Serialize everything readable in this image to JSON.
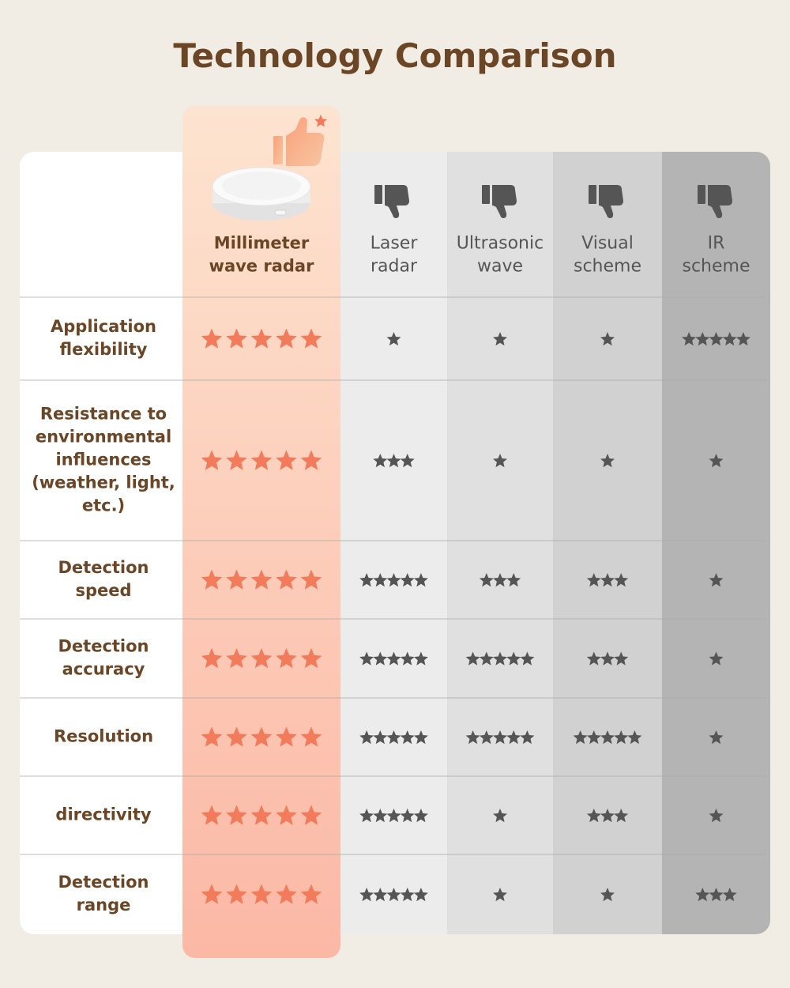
{
  "title": "Technology Comparison",
  "columns": [
    "Millimeter\nwave radar",
    "Laser\nradar",
    "Ultrasonic\nwave",
    "Visual\nscheme",
    "IR\nscheme"
  ],
  "rows": [
    {
      "label": "Application\nflexibility",
      "ratings": [
        5,
        1,
        1,
        1,
        5
      ]
    },
    {
      "label": "Resistance to\nenvironmental\ninfluences\n(weather, light,\netc.)",
      "ratings": [
        5,
        3,
        1,
        1,
        1
      ]
    },
    {
      "label": "Detection\nspeed",
      "ratings": [
        5,
        5,
        3,
        3,
        1
      ]
    },
    {
      "label": "Detection\naccuracy",
      "ratings": [
        5,
        5,
        5,
        3,
        1
      ]
    },
    {
      "label": "Resolution",
      "ratings": [
        5,
        5,
        5,
        5,
        1
      ]
    },
    {
      "label": "directivity",
      "ratings": [
        5,
        5,
        1,
        3,
        1
      ]
    },
    {
      "label": "Detection\nrange",
      "ratings": [
        5,
        5,
        1,
        1,
        3
      ]
    }
  ]
}
